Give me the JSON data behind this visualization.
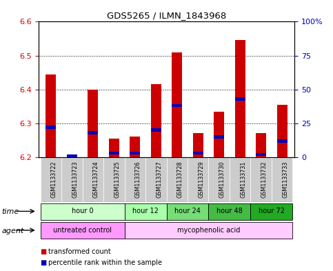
{
  "title": "GDS5265 / ILMN_1843968",
  "samples": [
    "GSM1133722",
    "GSM1133723",
    "GSM1133724",
    "GSM1133725",
    "GSM1133726",
    "GSM1133727",
    "GSM1133728",
    "GSM1133729",
    "GSM1133730",
    "GSM1133731",
    "GSM1133732",
    "GSM1133733"
  ],
  "transformed_count": [
    6.445,
    6.205,
    6.4,
    6.255,
    6.26,
    6.415,
    6.51,
    6.272,
    6.335,
    6.545,
    6.272,
    6.355
  ],
  "percentile_rank": [
    22,
    1,
    18,
    3,
    3,
    20,
    38,
    3,
    15,
    43,
    2,
    12
  ],
  "ylim_left": [
    6.2,
    6.6
  ],
  "ylim_right": [
    0,
    100
  ],
  "yticks_left": [
    6.2,
    6.3,
    6.4,
    6.5,
    6.6
  ],
  "yticks_right": [
    0,
    25,
    50,
    75,
    100
  ],
  "ytick_labels_right": [
    "0",
    "25",
    "50",
    "75",
    "100%"
  ],
  "bar_bottom": 6.2,
  "red_color": "#cc0000",
  "blue_color": "#0000bb",
  "time_groups": [
    {
      "label": "hour 0",
      "start": 0,
      "end": 3,
      "color": "#ccffcc"
    },
    {
      "label": "hour 12",
      "start": 4,
      "end": 5,
      "color": "#aaffaa"
    },
    {
      "label": "hour 24",
      "start": 6,
      "end": 7,
      "color": "#77dd77"
    },
    {
      "label": "hour 48",
      "start": 8,
      "end": 9,
      "color": "#44bb44"
    },
    {
      "label": "hour 72",
      "start": 10,
      "end": 11,
      "color": "#22aa22"
    }
  ],
  "agent_groups": [
    {
      "label": "untreated control",
      "start": 0,
      "end": 3,
      "color": "#ff99ff"
    },
    {
      "label": "mycophenolic acid",
      "start": 4,
      "end": 11,
      "color": "#ffccff"
    }
  ],
  "background_color": "#ffffff",
  "tick_color_left": "#cc0000",
  "tick_color_right": "#0000bb",
  "bar_width": 0.5,
  "sample_box_color": "#cccccc"
}
